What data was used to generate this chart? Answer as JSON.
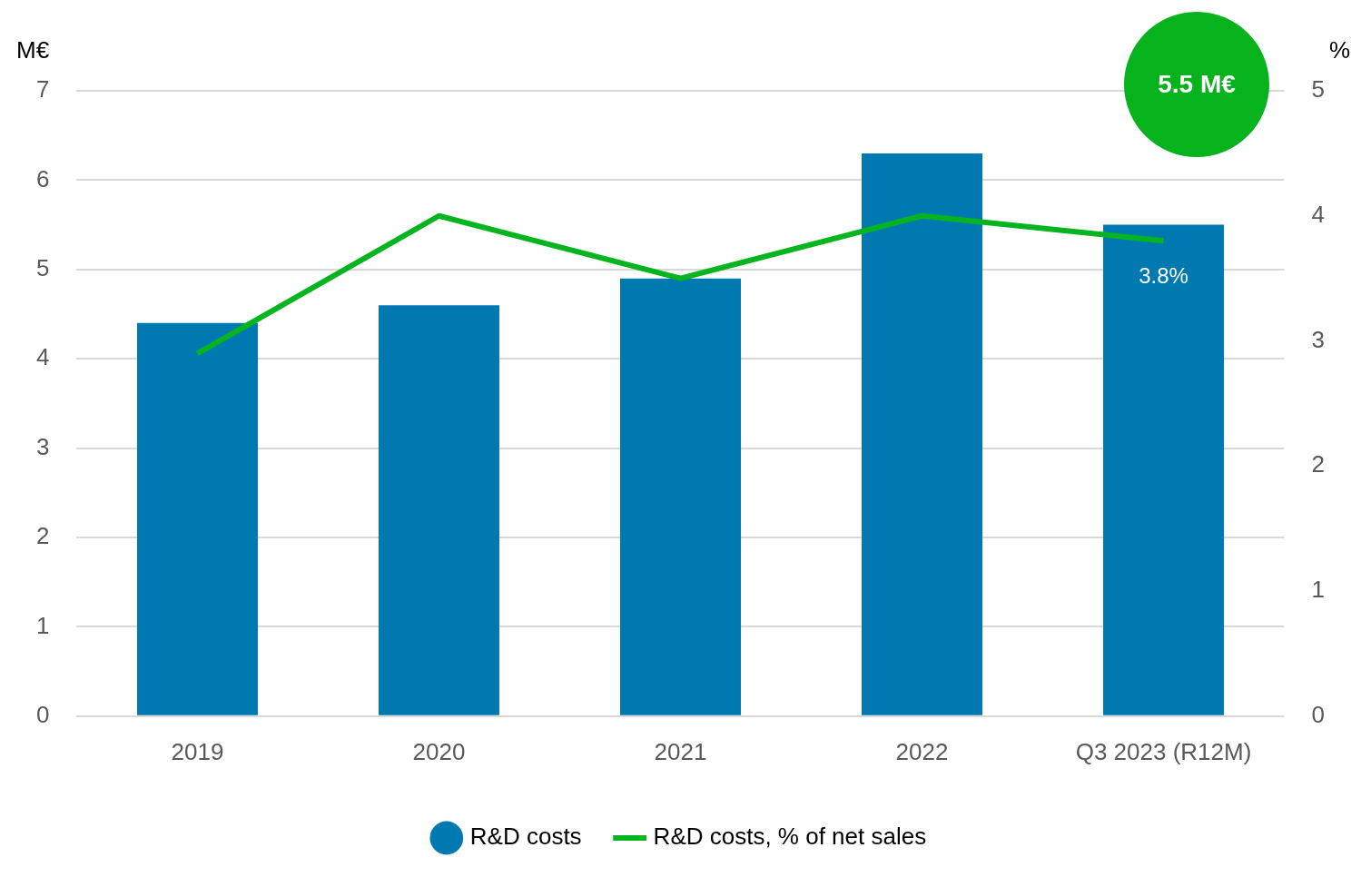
{
  "chart_data": {
    "type": "bar",
    "ylabel": "M€",
    "y2label": "%",
    "categories": [
      "2019",
      "2020",
      "2021",
      "2022",
      "Q3 2023 (R12M)"
    ],
    "series": [
      {
        "name": "R&D costs",
        "color": "#0079b0",
        "values": [
          4.4,
          4.6,
          4.9,
          6.3,
          5.5
        ]
      },
      {
        "name": "R&D costs, % of net sales",
        "type": "line",
        "axis": "y2",
        "color": "#05b41e",
        "marker": "none",
        "values": [
          2.9,
          4.0,
          3.5,
          4.0,
          3.8
        ],
        "value_labels": [
          null,
          null,
          null,
          null,
          "3.8%"
        ]
      }
    ],
    "ylim": [
      0,
      7
    ],
    "yticks": [
      0,
      1,
      2,
      3,
      4,
      5,
      6,
      7
    ],
    "y2lim": [
      0,
      5
    ],
    "y2ticks": [
      0,
      1,
      2,
      3,
      4,
      5
    ],
    "grid": "y",
    "legend": "bottom",
    "annotations": [
      "5.5 M€"
    ]
  }
}
